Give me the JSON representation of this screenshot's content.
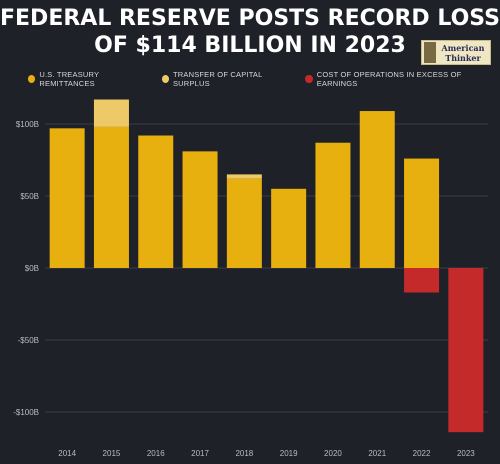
{
  "header": {
    "title_line1": "FEDERAL RESERVE POSTS RECORD LOSS",
    "title_line2": "OF $114 BILLION IN 2023",
    "logo_line1": "American",
    "logo_line2": "Thinker"
  },
  "colors": {
    "background": "#1f2129",
    "remittances": "#e7b00f",
    "surplus": "#edca67",
    "cost": "#c52a2a",
    "grid": "#3a3d47"
  },
  "chart_data": {
    "type": "bar",
    "stacked": true,
    "categories": [
      "2014",
      "2015",
      "2016",
      "2017",
      "2018",
      "2019",
      "2020",
      "2021",
      "2022",
      "2023"
    ],
    "series": [
      {
        "name": "U.S. TREASURY REMITTANCES",
        "values": [
          97,
          98,
          92,
          81,
          62,
          55,
          87,
          109,
          76,
          0
        ]
      },
      {
        "name": "TRANSFER OF CAPITAL SURPLUS",
        "values": [
          0,
          19,
          0,
          0,
          3,
          0,
          0,
          0,
          0,
          0
        ]
      },
      {
        "name": "COST OF OPERATIONS IN EXCESS OF EARNINGS",
        "values": [
          0,
          0,
          0,
          0,
          0,
          0,
          0,
          0,
          -17,
          -114
        ]
      }
    ],
    "ylim": [
      -120,
      120
    ],
    "y_ticks": [
      {
        "value": 100,
        "label": "$100B"
      },
      {
        "value": 50,
        "label": "$50B"
      },
      {
        "value": 0,
        "label": "$0B"
      },
      {
        "value": -50,
        "label": "-$50B"
      },
      {
        "value": -100,
        "label": "-$100B"
      }
    ],
    "legend_position": "top",
    "grid": true
  }
}
